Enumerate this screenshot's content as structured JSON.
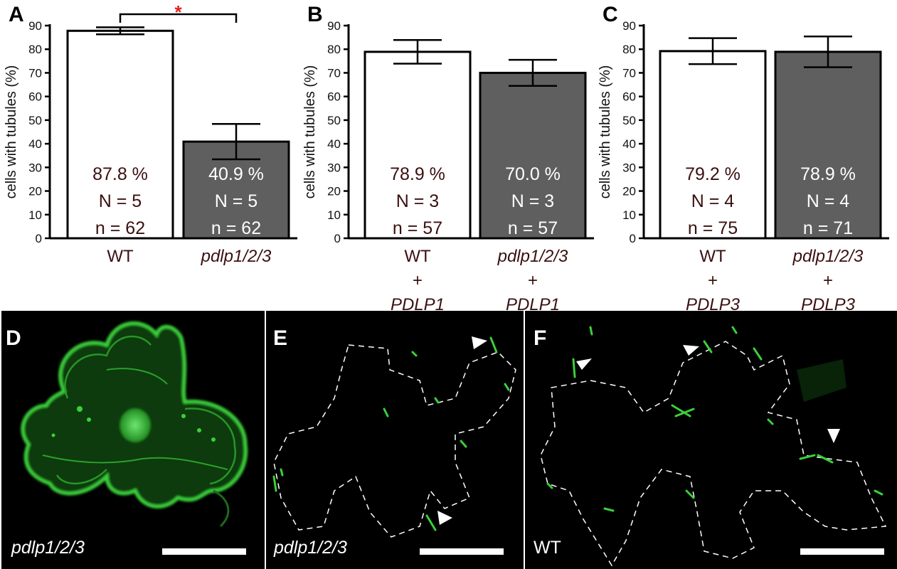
{
  "chart_data": [
    {
      "type": "bar",
      "panel": "A",
      "ylabel": "cells with tubules (%)",
      "ylim": [
        0,
        90
      ],
      "yticks": [
        0,
        10,
        20,
        30,
        40,
        50,
        60,
        70,
        80,
        90
      ],
      "categories": [
        {
          "lines": [
            {
              "text": "WT",
              "italic": false
            }
          ]
        },
        {
          "lines": [
            {
              "text": "pdlp1/2/3",
              "italic": true
            }
          ]
        }
      ],
      "values": [
        87.8,
        40.9
      ],
      "errors": [
        1.5,
        7.5
      ],
      "bar_colors": [
        "#ffffff",
        "#5f5f5f"
      ],
      "annotations": [
        [
          "87.8 %",
          "N = 5",
          "n = 62"
        ],
        [
          "40.9 %",
          "N = 5",
          "n = 62"
        ]
      ],
      "significance": {
        "between": [
          0,
          1
        ],
        "symbol": "*",
        "color": "#e02020"
      }
    },
    {
      "type": "bar",
      "panel": "B",
      "ylabel": "cells with tubules (%)",
      "ylim": [
        0,
        90
      ],
      "yticks": [
        0,
        10,
        20,
        30,
        40,
        50,
        60,
        70,
        80,
        90
      ],
      "categories": [
        {
          "lines": [
            {
              "text": "WT",
              "italic": false
            },
            {
              "text": "+",
              "italic": false
            },
            {
              "text": "PDLP1",
              "italic": true
            }
          ]
        },
        {
          "lines": [
            {
              "text": "pdlp1/2/3",
              "italic": true
            },
            {
              "text": "+",
              "italic": false
            },
            {
              "text": "PDLP1",
              "italic": true
            }
          ]
        }
      ],
      "values": [
        78.9,
        70.0
      ],
      "errors": [
        5.0,
        5.5
      ],
      "bar_colors": [
        "#ffffff",
        "#5f5f5f"
      ],
      "annotations": [
        [
          "78.9 %",
          "N = 3",
          "n = 57"
        ],
        [
          "70.0  %",
          "N = 3",
          "n = 57"
        ]
      ]
    },
    {
      "type": "bar",
      "panel": "C",
      "ylabel": "cells with tubules (%)",
      "ylim": [
        0,
        90
      ],
      "yticks": [
        0,
        10,
        20,
        30,
        40,
        50,
        60,
        70,
        80,
        90
      ],
      "categories": [
        {
          "lines": [
            {
              "text": "WT",
              "italic": false
            },
            {
              "text": "+",
              "italic": false
            },
            {
              "text": "PDLP3",
              "italic": true
            }
          ]
        },
        {
          "lines": [
            {
              "text": "pdlp1/2/3",
              "italic": true
            },
            {
              "text": "+",
              "italic": false
            },
            {
              "text": "PDLP3",
              "italic": true
            }
          ]
        }
      ],
      "values": [
        79.2,
        78.9
      ],
      "errors": [
        5.5,
        6.5
      ],
      "bar_colors": [
        "#ffffff",
        "#5f5f5f"
      ],
      "annotations": [
        [
          "79.2  %",
          "N = 4",
          "n = 75"
        ],
        [
          "78.9 %",
          "N = 4",
          "n = 71"
        ]
      ]
    }
  ],
  "micrographs": [
    {
      "panel": "D",
      "label": "pdlp1/2/3",
      "label_italic": true,
      "arrowheads": 0
    },
    {
      "panel": "E",
      "label": "pdlp1/2/3",
      "label_italic": true,
      "arrowheads": 2
    },
    {
      "panel": "F",
      "label": "WT",
      "label_italic": false,
      "arrowheads": 3
    }
  ],
  "colors": {
    "fluorescence": "#3ad03a",
    "background": "#000000",
    "outline": "#ffffff",
    "annotation_on_white": "#3a1010",
    "annotation_on_gray": "#ffffff"
  }
}
